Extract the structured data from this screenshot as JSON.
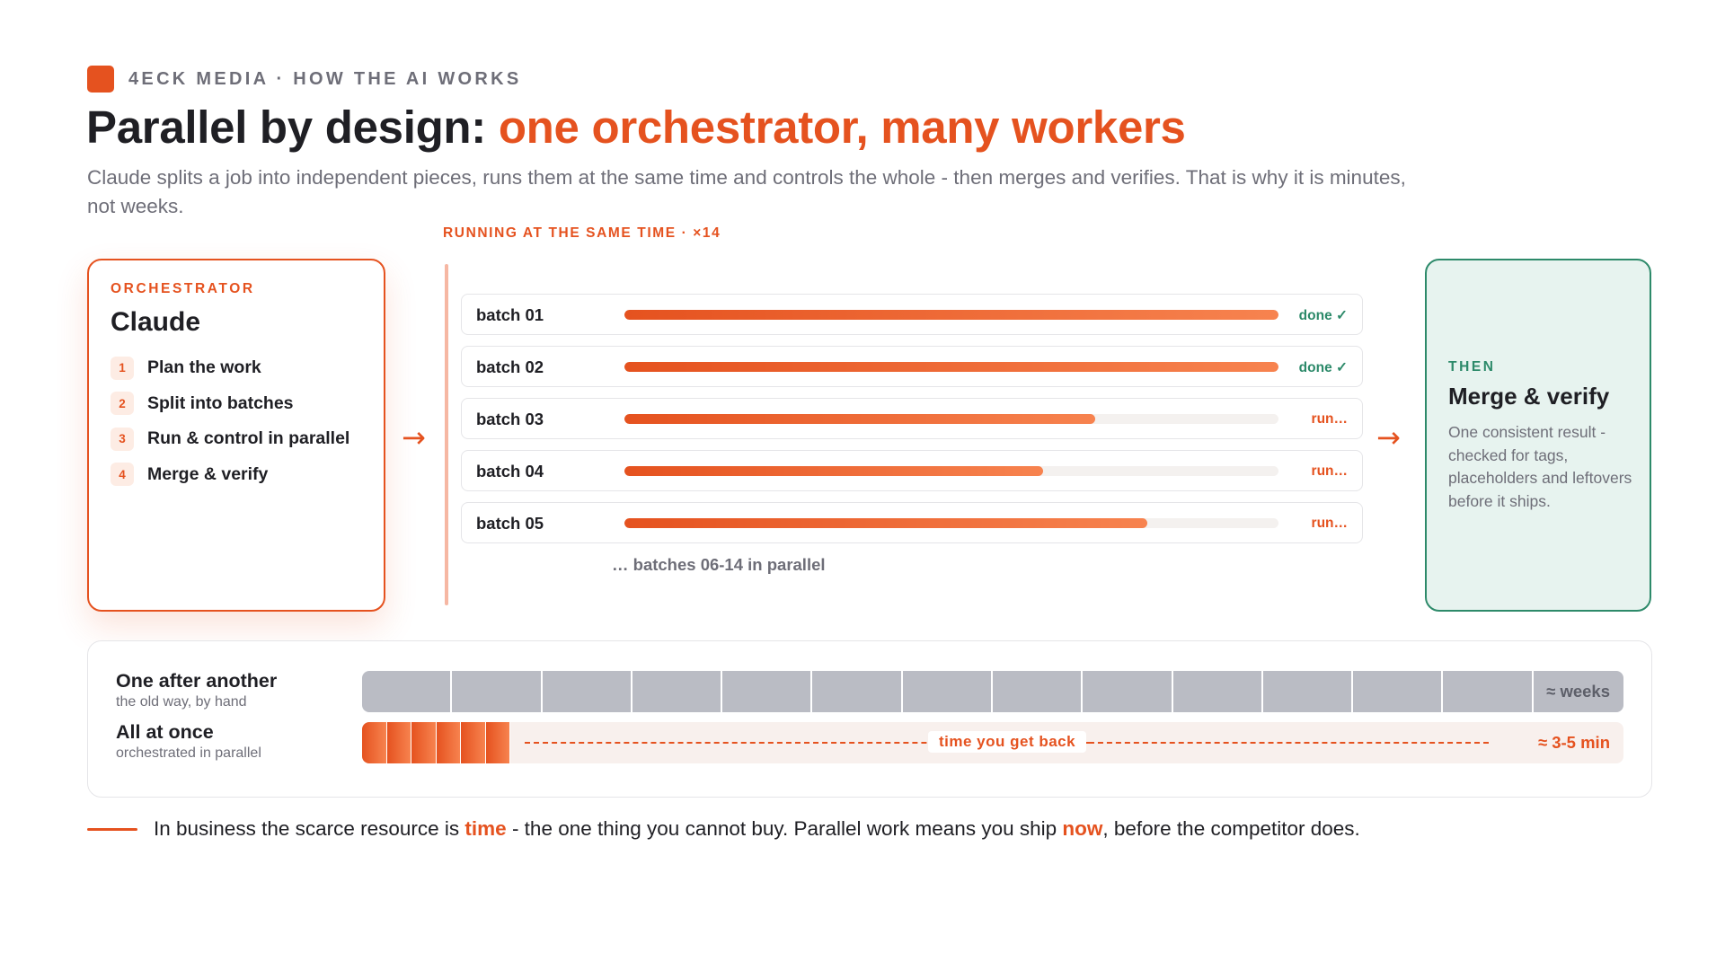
{
  "brand": {
    "text": "4ECK MEDIA · HOW THE AI WORKS",
    "accent_color": "#e5521f"
  },
  "header": {
    "title_prefix": "Parallel by design: ",
    "title_accent": "one orchestrator, many workers",
    "subtitle": "Claude splits a job into independent pieces, runs them at the same time and controls the whole - then merges and verifies. That is why it is minutes, not weeks."
  },
  "orchestrator": {
    "kicker": "ORCHESTRATOR",
    "name": "Claude",
    "steps": [
      {
        "num": "1",
        "label": "Plan the work"
      },
      {
        "num": "2",
        "label": "Split into batches"
      },
      {
        "num": "3",
        "label": "Run & control in parallel"
      },
      {
        "num": "4",
        "label": "Merge & verify"
      }
    ]
  },
  "arrows": {
    "left": "→",
    "right": "→"
  },
  "workers": {
    "label": "RUNNING AT THE SAME TIME · ×14",
    "batches": [
      {
        "name": "batch 01",
        "progress": 1.0,
        "status": "done ✓",
        "state": "done"
      },
      {
        "name": "batch 02",
        "progress": 1.0,
        "status": "done ✓",
        "state": "done"
      },
      {
        "name": "batch 03",
        "progress": 0.72,
        "status": "run…",
        "state": "run"
      },
      {
        "name": "batch 04",
        "progress": 0.64,
        "status": "run…",
        "state": "run"
      },
      {
        "name": "batch 05",
        "progress": 0.8,
        "status": "run…",
        "state": "run"
      }
    ],
    "more": "… batches 06-14 in parallel"
  },
  "merge": {
    "kicker": "THEN",
    "title": "Merge & verify",
    "description": "One consistent result - checked for tags, placeholders and leftovers before it ships."
  },
  "comparison": {
    "sequential": {
      "title": "One after another",
      "subtitle": "the old way, by hand",
      "segments": 14,
      "result": "≈ weeks"
    },
    "parallel": {
      "title": "All at once",
      "subtitle": "orchestrated in parallel",
      "segments": 6,
      "gap_label": "time you get back",
      "result": "≈ 3-5 min"
    }
  },
  "footer": {
    "part1": "In business the scarce resource is ",
    "highlight1": "time",
    "part2": " - the one thing you cannot buy. Parallel work means you ship ",
    "highlight2": "now",
    "part3": ", before the competitor does."
  },
  "colors": {
    "accent": "#e5521f",
    "success": "#2d8a6a",
    "muted": "#6e6e78",
    "sequential": "#babcc4"
  }
}
